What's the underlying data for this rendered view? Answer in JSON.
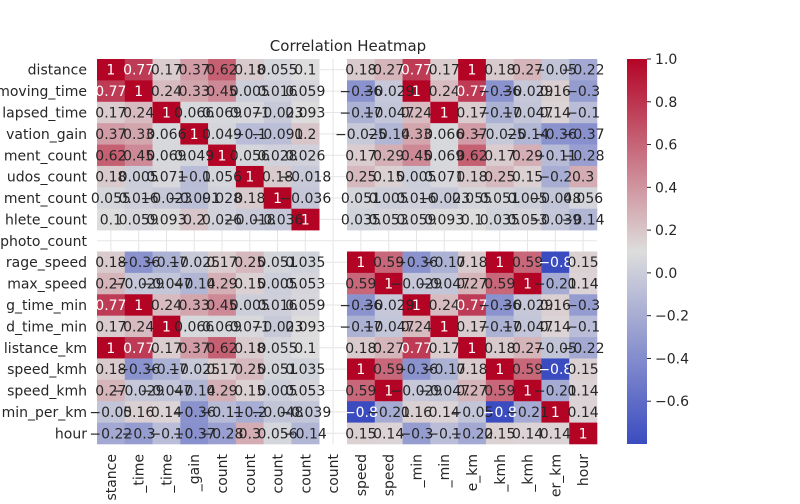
{
  "chart_data": {
    "type": "heatmap",
    "title": "Correlation Heatmap",
    "rows": [
      "distance",
      "moving_time",
      "elapsed_time",
      "elevation_gain",
      "comment_count",
      "kudos_count",
      "achievement_count",
      "athlete_count",
      "total_photo_count",
      "average_speed",
      "max_speed",
      "moving_time_min",
      "elapsed_time_min",
      "distance_km",
      "avg_speed_kmh",
      "max_speed_kmh",
      "pace_min_per_km",
      "hour"
    ],
    "row_labels_visible": [
      "distance",
      "moving_time",
      "lapsed_time",
      "vation_gain",
      "ment_count",
      "udos_count",
      "ment_count",
      "hlete_count",
      "photo_count",
      "rage_speed",
      "max_speed",
      "g_time_min",
      "d_time_min",
      "listance_km",
      "speed_kmh",
      "speed_kmh",
      "min_per_km",
      "hour"
    ],
    "col_labels_visible": [
      "stance",
      "_time",
      "_time",
      "_gain",
      "count",
      "count",
      "count",
      "count",
      "count",
      "speed",
      "speed",
      "_min",
      "_min",
      "e_km",
      "_kmh",
      "_kmh",
      "er_km",
      "hour"
    ],
    "matrix": [
      [
        1,
        0.77,
        0.17,
        0.37,
        0.62,
        0.18,
        0.055,
        0.1,
        null,
        0.18,
        0.27,
        0.77,
        0.17,
        1,
        0.18,
        0.27,
        -0.05,
        -0.22
      ],
      [
        0.77,
        1,
        0.24,
        0.33,
        0.45,
        0.005,
        0.016,
        0.059,
        null,
        -0.36,
        -0.029,
        1,
        0.24,
        0.77,
        -0.36,
        -0.029,
        0.16,
        -0.3
      ],
      [
        0.17,
        0.24,
        1,
        0.066,
        0.069,
        0.071,
        -0.023,
        0.093,
        null,
        -0.17,
        -0.047,
        0.24,
        1,
        0.17,
        -0.17,
        -0.047,
        0.14,
        -0.1
      ],
      [
        0.37,
        0.33,
        0.066,
        1,
        0.049,
        -0.1,
        -0.091,
        0.2,
        null,
        -0.025,
        -0.14,
        0.33,
        0.066,
        0.37,
        -0.025,
        -0.14,
        -0.36,
        -0.37
      ],
      [
        0.62,
        0.45,
        0.069,
        0.049,
        1,
        0.056,
        0.028,
        0.026,
        null,
        0.17,
        0.29,
        0.45,
        0.069,
        0.62,
        0.17,
        0.29,
        -0.11,
        -0.28
      ],
      [
        0.18,
        0.005,
        0.071,
        -0.1,
        0.056,
        1,
        0.18,
        -0.018,
        null,
        0.25,
        0.15,
        0.005,
        0.071,
        0.18,
        0.25,
        0.15,
        -0.2,
        0.3
      ],
      [
        0.055,
        0.016,
        -0.023,
        -0.091,
        0.028,
        0.18,
        1,
        -0.036,
        null,
        0.051,
        0.005,
        0.016,
        -0.023,
        0.055,
        0.051,
        0.005,
        -0.048,
        0.056
      ],
      [
        0.1,
        0.059,
        0.093,
        0.2,
        0.026,
        -0.018,
        -0.036,
        1,
        null,
        0.035,
        0.053,
        0.059,
        0.093,
        0.1,
        0.035,
        0.053,
        -0.039,
        -0.14
      ],
      [
        null,
        null,
        null,
        null,
        null,
        null,
        null,
        null,
        null,
        null,
        null,
        null,
        null,
        null,
        null,
        null,
        null,
        null
      ],
      [
        0.18,
        -0.36,
        -0.17,
        -0.025,
        0.17,
        0.25,
        0.051,
        0.035,
        null,
        1,
        0.59,
        -0.36,
        -0.17,
        0.18,
        1,
        0.59,
        -0.8,
        0.15
      ],
      [
        0.27,
        -0.029,
        -0.047,
        -0.14,
        0.29,
        0.15,
        0.005,
        0.053,
        null,
        0.59,
        1,
        -0.029,
        -0.047,
        0.27,
        0.59,
        1,
        -0.21,
        0.14
      ],
      [
        0.77,
        1,
        0.24,
        0.33,
        0.45,
        0.005,
        0.016,
        0.059,
        null,
        -0.36,
        -0.029,
        1,
        0.24,
        0.77,
        -0.36,
        -0.029,
        0.16,
        -0.3
      ],
      [
        0.17,
        0.24,
        1,
        0.066,
        0.069,
        0.071,
        -0.023,
        0.093,
        null,
        -0.17,
        -0.047,
        0.24,
        1,
        0.17,
        -0.17,
        -0.047,
        0.14,
        -0.1
      ],
      [
        1,
        0.77,
        0.17,
        0.37,
        0.62,
        0.18,
        0.055,
        0.1,
        null,
        0.18,
        0.27,
        0.77,
        0.17,
        1,
        0.18,
        0.27,
        -0.05,
        -0.22
      ],
      [
        0.18,
        -0.36,
        -0.17,
        -0.025,
        0.17,
        0.25,
        0.051,
        0.035,
        null,
        1,
        0.59,
        -0.36,
        -0.17,
        0.18,
        1,
        0.59,
        -0.8,
        0.15
      ],
      [
        0.27,
        -0.029,
        -0.047,
        -0.14,
        0.29,
        0.15,
        0.005,
        0.053,
        null,
        0.59,
        1,
        -0.029,
        -0.047,
        0.27,
        0.59,
        1,
        -0.21,
        0.14
      ],
      [
        -0.05,
        0.16,
        0.14,
        -0.36,
        -0.11,
        -0.2,
        -0.048,
        -0.039,
        null,
        -0.8,
        -0.21,
        0.16,
        0.14,
        -0.05,
        -0.8,
        -0.21,
        1,
        0.14
      ],
      [
        -0.22,
        -0.3,
        -0.1,
        -0.37,
        -0.28,
        0.3,
        0.056,
        -0.14,
        null,
        0.15,
        0.14,
        -0.3,
        -0.1,
        -0.22,
        0.15,
        0.14,
        0.14,
        1
      ]
    ],
    "colormap": "coolwarm",
    "colors": {
      "low": "#3b4cc0",
      "mid": "#dddddd",
      "high": "#b40426"
    },
    "vmin": -0.8,
    "vmax": 1,
    "colorbar_ticks": [
      1.0,
      0.8,
      0.6,
      0.4,
      0.2,
      0.0,
      -0.2,
      -0.4,
      -0.6
    ],
    "colorbar_tick_labels": [
      "1.0",
      "0.8",
      "0.6",
      "0.4",
      "0.2",
      "0.0",
      "−0.2",
      "−0.4",
      "−0.6"
    ],
    "annotated": true,
    "grid": true
  }
}
